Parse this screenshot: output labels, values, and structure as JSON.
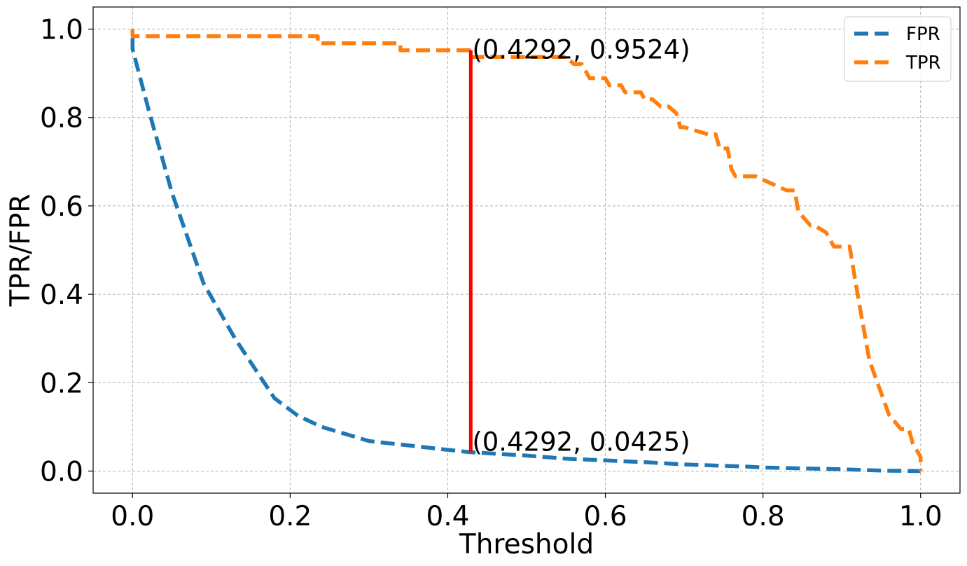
{
  "chart_data": {
    "type": "line",
    "title": "",
    "xlabel": "Threshold",
    "ylabel": "TPR/FPR",
    "xlim": [
      -0.05,
      1.05
    ],
    "ylim": [
      -0.05,
      1.05
    ],
    "xticks": [
      0.0,
      0.2,
      0.4,
      0.6,
      0.8,
      1.0
    ],
    "xtick_labels": [
      "0.0",
      "0.2",
      "0.4",
      "0.6",
      "0.8",
      "1.0"
    ],
    "yticks": [
      0.0,
      0.2,
      0.4,
      0.6,
      0.8,
      1.0
    ],
    "ytick_labels": [
      "0.0",
      "0.2",
      "0.4",
      "0.6",
      "0.8",
      "1.0"
    ],
    "grid": true,
    "legend_position": "top-right",
    "series": [
      {
        "name": "FPR",
        "color": "#1f77b4",
        "style": "dashed",
        "x": [
          0.0,
          0.0,
          0.02,
          0.05,
          0.09,
          0.13,
          0.18,
          0.21,
          0.24,
          0.3,
          0.34,
          0.4,
          0.4292,
          0.5,
          0.55,
          0.65,
          0.7,
          0.78,
          0.8,
          0.9,
          0.95,
          1.0
        ],
        "y": [
          0.98,
          0.955,
          0.82,
          0.63,
          0.425,
          0.3,
          0.165,
          0.125,
          0.1,
          0.068,
          0.06,
          0.048,
          0.0425,
          0.035,
          0.028,
          0.02,
          0.015,
          0.01,
          0.008,
          0.004,
          0.001,
          0.0
        ]
      },
      {
        "name": "TPR",
        "color": "#ff7f0e",
        "style": "dashed",
        "x": [
          0.0,
          0.0,
          0.235,
          0.235,
          0.34,
          0.34,
          0.4292,
          0.4292,
          0.55,
          0.56,
          0.57,
          0.58,
          0.6,
          0.605,
          0.62,
          0.625,
          0.645,
          0.65,
          0.66,
          0.67,
          0.68,
          0.69,
          0.695,
          0.7,
          0.73,
          0.74,
          0.745,
          0.755,
          0.76,
          0.765,
          0.79,
          0.83,
          0.84,
          0.845,
          0.86,
          0.865,
          0.88,
          0.89,
          0.9,
          0.91,
          0.92,
          0.935,
          0.96,
          0.975,
          0.985,
          0.99,
          1.0,
          1.0
        ],
        "y": [
          1.0,
          0.984,
          0.984,
          0.968,
          0.968,
          0.952,
          0.952,
          0.937,
          0.937,
          0.921,
          0.921,
          0.889,
          0.889,
          0.873,
          0.873,
          0.857,
          0.857,
          0.841,
          0.841,
          0.825,
          0.825,
          0.81,
          0.778,
          0.778,
          0.762,
          0.762,
          0.73,
          0.73,
          0.683,
          0.667,
          0.667,
          0.635,
          0.635,
          0.587,
          0.556,
          0.556,
          0.54,
          0.508,
          0.508,
          0.508,
          0.4,
          0.25,
          0.127,
          0.095,
          0.095,
          0.063,
          0.032,
          0.0
        ]
      }
    ],
    "threshold_line": {
      "x": 0.4292,
      "y_from": 0.0425,
      "y_to": 0.9524,
      "color": "#ff0000"
    },
    "annotations": [
      {
        "text": "(0.4292, 0.9524)",
        "x": 0.4292,
        "y": 0.9524
      },
      {
        "text": "(0.4292, 0.0425)",
        "x": 0.4292,
        "y": 0.0425
      }
    ]
  }
}
